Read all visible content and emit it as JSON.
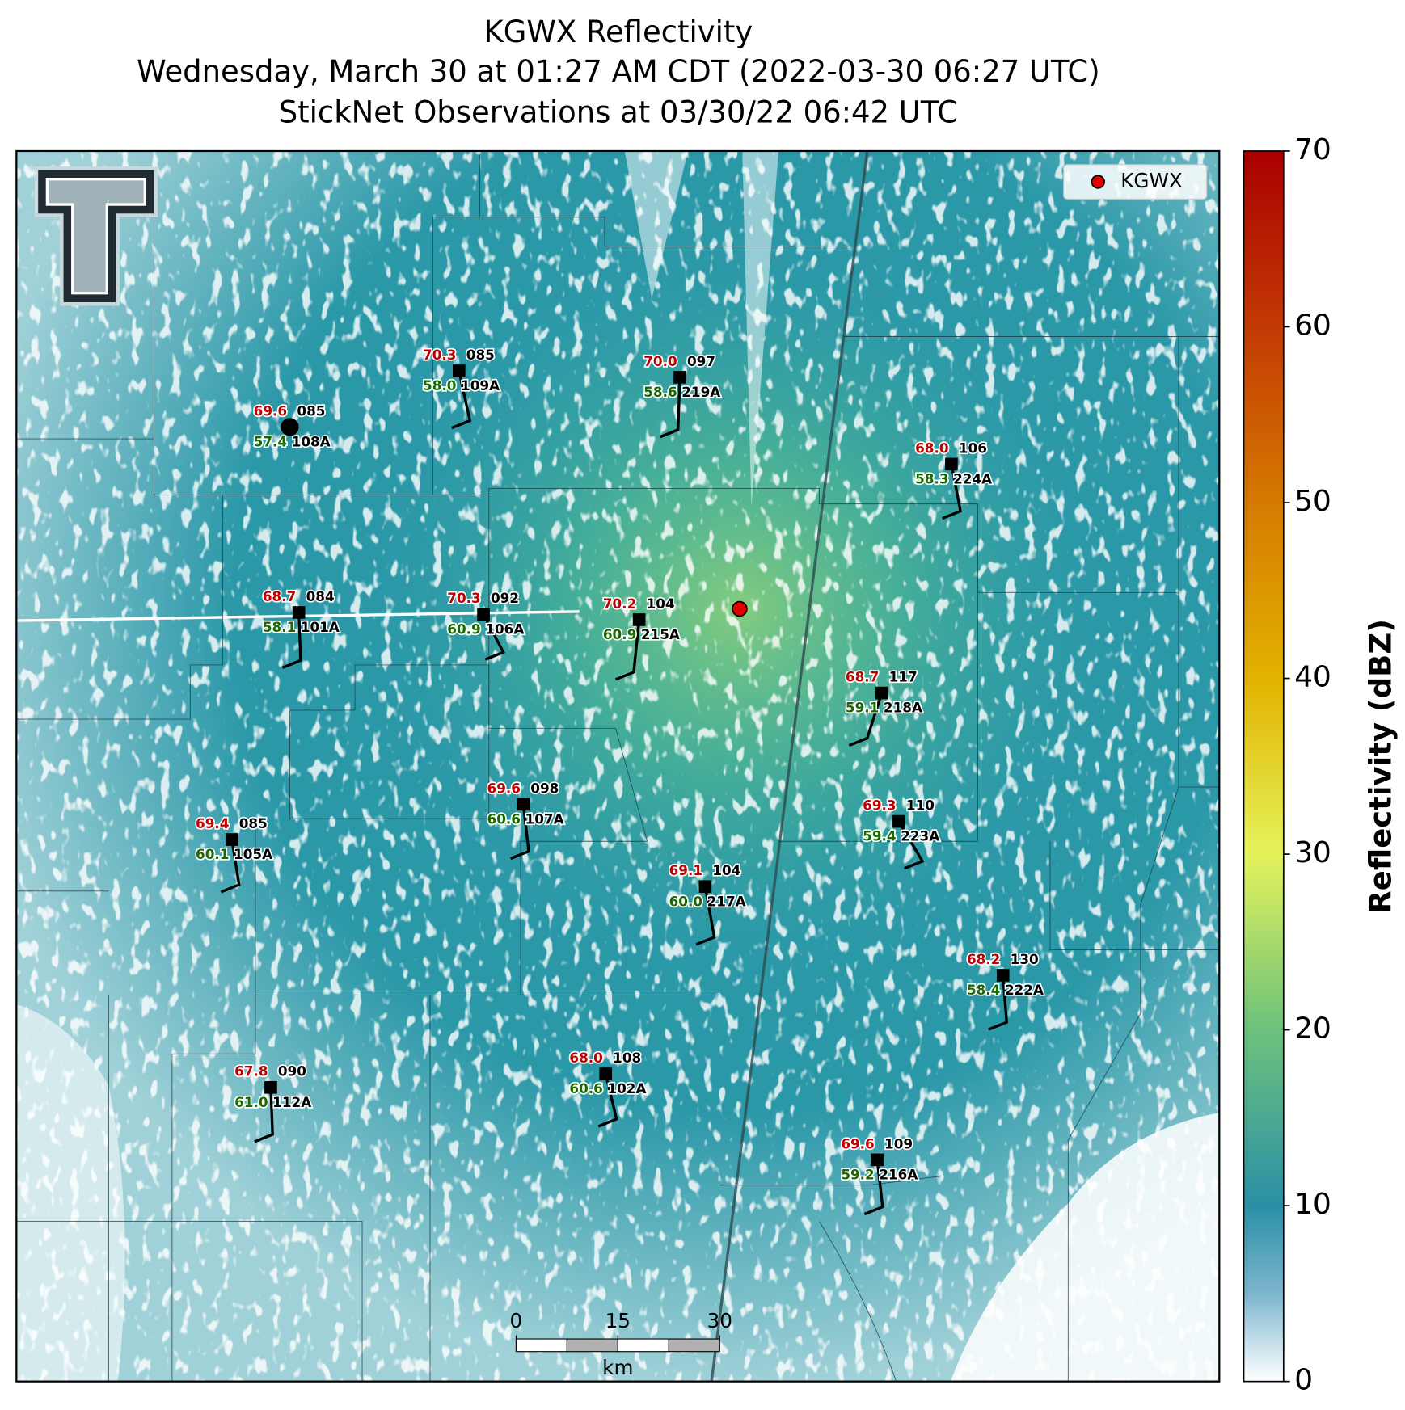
{
  "title": [
    "KGWX Reflectivity",
    "Wednesday, March 30 at 01:27 AM CDT (2022-03-30 06:27 UTC)",
    "StickNet Observations at 03/30/22 06:42 UTC"
  ],
  "legend": "KGWX",
  "stations": [
    {
      "id": "108A",
      "temp": "69.6",
      "dew": "57.4",
      "pressure": "085"
    },
    {
      "id": "109A",
      "temp": "70.3",
      "dew": "58.0",
      "pressure": "085"
    },
    {
      "id": "219A",
      "temp": "70.0",
      "dew": "58.6",
      "pressure": "097"
    },
    {
      "id": "224A",
      "temp": "68.0",
      "dew": "58.3",
      "pressure": "106"
    },
    {
      "id": "101A",
      "temp": "68.7",
      "dew": "58.1",
      "pressure": "084"
    },
    {
      "id": "106A",
      "temp": "70.3",
      "dew": "60.9",
      "pressure": "092"
    },
    {
      "id": "215A",
      "temp": "70.2",
      "dew": "60.9",
      "pressure": "104"
    },
    {
      "id": "218A",
      "temp": "68.7",
      "dew": "59.1",
      "pressure": "117"
    },
    {
      "id": "107A",
      "temp": "69.6",
      "dew": "60.6",
      "pressure": "098"
    },
    {
      "id": "105A",
      "temp": "69.4",
      "dew": "60.1",
      "pressure": "085"
    },
    {
      "id": "223A",
      "temp": "69.3",
      "dew": "59.4",
      "pressure": "110"
    },
    {
      "id": "217A",
      "temp": "69.1",
      "dew": "60.0",
      "pressure": "104"
    },
    {
      "id": "222A",
      "temp": "68.2",
      "dew": "58.4",
      "pressure": "130"
    },
    {
      "id": "102A",
      "temp": "68.0",
      "dew": "60.6",
      "pressure": "108"
    },
    {
      "id": "112A",
      "temp": "67.8",
      "dew": "61.0",
      "pressure": "090"
    },
    {
      "id": "216A",
      "temp": "69.6",
      "dew": "59.2",
      "pressure": "109"
    }
  ],
  "colorbar": {
    "label": "Reflectivity (dBZ)",
    "lim": [
      0,
      70
    ],
    "ticks": [
      0,
      10,
      20,
      30,
      40,
      50,
      60,
      70
    ]
  },
  "scale_bar": {
    "ticks": [
      0,
      15,
      30
    ],
    "unit": "km"
  }
}
